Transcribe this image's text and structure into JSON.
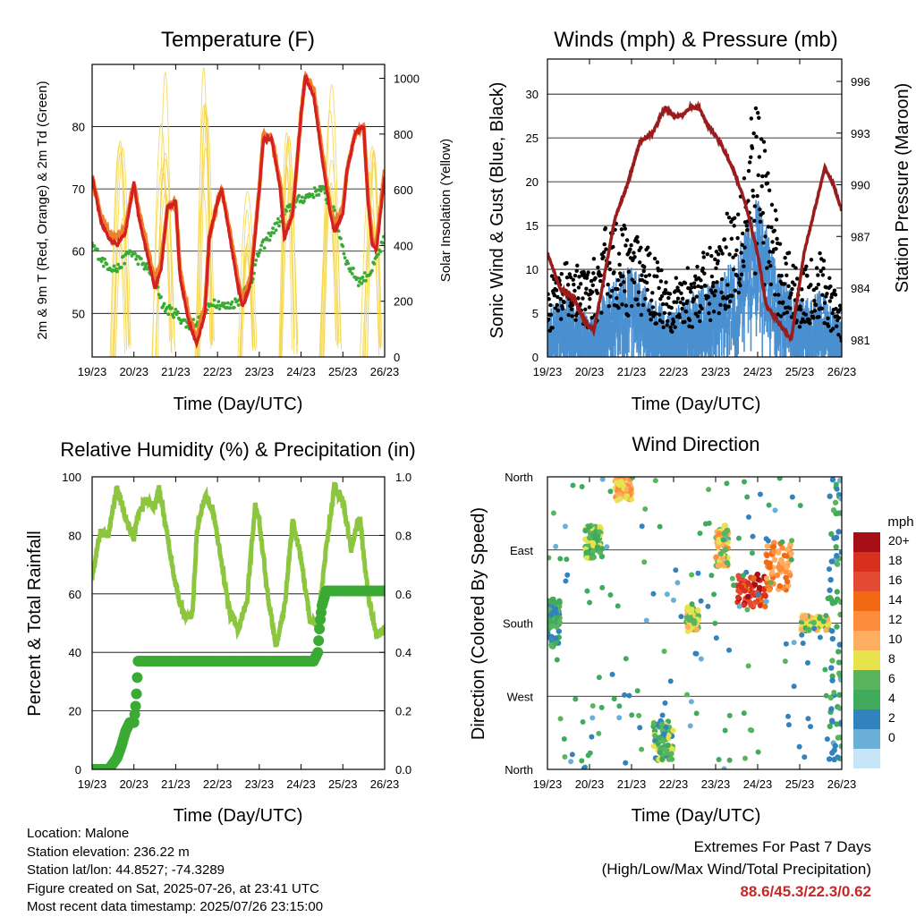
{
  "x_ticks": [
    "19/23",
    "20/23",
    "21/23",
    "22/23",
    "23/23",
    "24/23",
    "25/23",
    "26/23"
  ],
  "info": {
    "location": "Location: Malone",
    "elevation": "Station elevation: 236.22 m",
    "latlon": "Station lat/lon: 44.8527; -74.3289",
    "created": "Figure created on Sat, 2025-07-26, at 23:41 UTC",
    "recent": "Most recent data timestamp: 2025/07/26 23:15:00"
  },
  "extremes": {
    "line1": "Extremes For Past 7 Days",
    "line2": "(High/Low/Max Wind/Total Precipitation)",
    "values": "88.6/45.3/22.3/0.62"
  },
  "colors": {
    "temp2m": "#d42020",
    "temp9m": "#ee7f2d",
    "dewpoint": "#3aaa35",
    "solar": "#f5d547",
    "pressure": "#9b1c1c",
    "wind": "#4a90d0",
    "gust": "#000000",
    "rh": "#8cc63f",
    "precip": "#3aaa35"
  },
  "chart_data": [
    {
      "type": "line",
      "title": "Temperature (F)",
      "xlabel": "Time (Day/UTC)",
      "ylabel": "2m & 9m T (Red, Orange) & 2m Td (Green)",
      "ylabel_right": "Solar Insolation (Yellow)",
      "x_ticks": [
        "19/23",
        "20/23",
        "21/23",
        "22/23",
        "23/23",
        "24/23",
        "25/23",
        "26/23"
      ],
      "ylim": [
        43,
        90
      ],
      "yticks": [
        50,
        60,
        70,
        80
      ],
      "ylim_right": [
        0,
        1050
      ],
      "yticks_right": [
        0,
        200,
        400,
        600,
        800,
        1000
      ],
      "series": [
        {
          "key": "temp2m",
          "x": [
            0,
            0.2,
            0.4,
            0.6,
            0.8,
            1.0,
            1.1,
            1.3,
            1.5,
            1.65,
            1.8,
            2.0,
            2.1,
            2.3,
            2.5,
            2.7,
            2.8,
            3.0,
            3.1,
            3.3,
            3.5,
            3.6,
            3.8,
            4.0,
            4.1,
            4.3,
            4.5,
            4.6,
            4.8,
            5.0,
            5.1,
            5.3,
            5.5,
            5.7,
            5.8,
            6.0,
            6.1,
            6.3,
            6.5,
            6.6,
            6.7,
            6.8,
            7.0
          ],
          "y": [
            72,
            65,
            62,
            61,
            63,
            71,
            66,
            60,
            54,
            57,
            67,
            68,
            56,
            49,
            45,
            50,
            62,
            68,
            70,
            62,
            54,
            51,
            55,
            70,
            78,
            78,
            70,
            62,
            66,
            82,
            88,
            85,
            75,
            66,
            63,
            66,
            73,
            79,
            80,
            68,
            61,
            60,
            72
          ]
        },
        {
          "key": "temp9m",
          "x": [
            0,
            0.2,
            0.4,
            0.6,
            0.8,
            1.0,
            1.1,
            1.3,
            1.5,
            1.65,
            1.8,
            2.0,
            2.1,
            2.3,
            2.5,
            2.7,
            2.8,
            3.0,
            3.1,
            3.3,
            3.5,
            3.6,
            3.8,
            4.0,
            4.1,
            4.3,
            4.5,
            4.6,
            4.8,
            5.0,
            5.1,
            5.3,
            5.5,
            5.7,
            5.8,
            6.0,
            6.1,
            6.3,
            6.5,
            6.6,
            6.7,
            6.8,
            7.0
          ],
          "y": [
            72,
            66,
            63,
            62,
            64,
            71,
            67,
            61,
            55,
            58,
            67,
            68,
            57,
            50,
            46,
            51,
            62,
            68,
            70,
            63,
            55,
            52,
            56,
            70,
            79,
            78,
            71,
            63,
            66,
            82,
            88,
            86,
            76,
            67,
            64,
            67,
            73,
            79,
            80,
            69,
            62,
            61,
            73
          ]
        },
        {
          "key": "dewpoint",
          "x": [
            0,
            0.3,
            0.6,
            0.9,
            1.2,
            1.5,
            1.7,
            2.0,
            2.3,
            2.6,
            2.9,
            3.2,
            3.5,
            3.8,
            4.0,
            4.3,
            4.6,
            4.9,
            5.2,
            5.5,
            5.8,
            6.1,
            6.4,
            6.7,
            7.0
          ],
          "y": [
            61,
            58,
            57,
            60,
            58,
            56,
            51,
            50,
            48,
            49,
            52,
            51,
            52,
            55,
            60,
            63,
            66,
            68,
            69,
            70,
            66,
            58,
            55,
            57,
            62
          ]
        }
      ],
      "solar": {
        "peaks_at": [
          0.7,
          1.7,
          2.7,
          3.7,
          4.7,
          5.7,
          6.7
        ],
        "peak_values": [
          780,
          1030,
          1040,
          600,
          920,
          1010,
          780
        ]
      }
    },
    {
      "type": "scatter",
      "title": "Winds (mph) & Pressure (mb)",
      "xlabel": "Time (Day/UTC)",
      "ylabel": "Sonic Wind & Gust (Blue, Black)",
      "ylabel_right": "Station Pressure (Maroon)",
      "x_ticks": [
        "19/23",
        "20/23",
        "21/23",
        "22/23",
        "23/23",
        "24/23",
        "25/23",
        "26/23"
      ],
      "ylim": [
        0,
        34
      ],
      "yticks": [
        0,
        5,
        10,
        15,
        20,
        25,
        30
      ],
      "ylim_right": [
        980,
        997.3
      ],
      "yticks_right": [
        981,
        984,
        987,
        990,
        993,
        996
      ],
      "wind_envelope": {
        "x": [
          0,
          0.5,
          1.0,
          1.5,
          2.0,
          2.5,
          3.0,
          3.5,
          4.0,
          4.5,
          5.0,
          5.5,
          6.0,
          6.5,
          7.0
        ],
        "y": [
          5,
          7,
          4,
          8,
          10,
          6,
          5,
          7,
          8,
          11,
          17,
          9,
          6,
          7,
          4
        ]
      },
      "gust_envelope": {
        "x": [
          0,
          0.5,
          1.0,
          1.5,
          2.0,
          2.5,
          3.0,
          3.5,
          4.0,
          4.5,
          5.0,
          5.5,
          6.0,
          6.5,
          7.0
        ],
        "y": [
          8,
          10,
          9,
          15,
          13,
          11,
          8,
          10,
          12,
          18,
          28,
          13,
          9,
          11,
          5
        ]
      },
      "pressure": {
        "x": [
          0,
          0.3,
          0.6,
          0.9,
          1.1,
          1.3,
          1.6,
          1.9,
          2.2,
          2.5,
          2.8,
          3.0,
          3.2,
          3.4,
          3.6,
          3.8,
          4.1,
          4.4,
          4.7,
          5.0,
          5.2,
          5.5,
          5.8,
          6.1,
          6.4,
          6.6,
          6.8,
          7.0
        ],
        "y": [
          986,
          984,
          983.5,
          982,
          981.5,
          984,
          988,
          990,
          992.5,
          993,
          994.5,
          994,
          994,
          994.5,
          994.5,
          993.5,
          992.5,
          991,
          989,
          986,
          983,
          982,
          981,
          986,
          989,
          991,
          990,
          988.5
        ]
      }
    },
    {
      "type": "line",
      "title": "Relative Humidity (%) & Precipitation (in)",
      "xlabel": "Time (Day/UTC)",
      "ylabel": "Percent & Total Rainfall",
      "x_ticks": [
        "19/23",
        "20/23",
        "21/23",
        "22/23",
        "23/23",
        "24/23",
        "25/23",
        "26/23"
      ],
      "ylim": [
        0,
        100
      ],
      "yticks": [
        0,
        20,
        40,
        60,
        80,
        100
      ],
      "ylim_right": [
        0,
        1.0
      ],
      "yticks_right": [
        "0.0",
        "0.2",
        "0.4",
        "0.6",
        "0.8",
        "1.0"
      ],
      "rh": {
        "x": [
          0,
          0.2,
          0.4,
          0.5,
          0.6,
          0.8,
          1.0,
          1.1,
          1.3,
          1.5,
          1.6,
          1.8,
          2.0,
          2.2,
          2.4,
          2.5,
          2.7,
          2.9,
          3.1,
          3.3,
          3.5,
          3.7,
          3.9,
          4.0,
          4.2,
          4.4,
          4.6,
          4.8,
          5.0,
          5.2,
          5.4,
          5.6,
          5.8,
          6.0,
          6.2,
          6.4,
          6.6,
          6.8,
          7.0
        ],
        "y": [
          66,
          81,
          80,
          90,
          96,
          86,
          79,
          88,
          92,
          90,
          96,
          80,
          63,
          52,
          53,
          80,
          94,
          88,
          70,
          53,
          48,
          57,
          90,
          85,
          60,
          42,
          55,
          85,
          72,
          52,
          49,
          75,
          97,
          92,
          75,
          87,
          60,
          46,
          48
        ]
      },
      "precip": {
        "x": [
          0,
          0.4,
          0.5,
          0.6,
          0.7,
          0.8,
          0.9,
          1.0,
          1.05,
          1.1,
          1.5,
          2.0,
          3.0,
          4.0,
          4.5,
          5.0,
          5.3,
          5.4,
          5.45,
          5.5,
          5.6,
          6.0,
          6.5,
          7.0
        ],
        "y": [
          0,
          0,
          0.02,
          0.04,
          0.08,
          0.13,
          0.16,
          0.16,
          0.23,
          0.37,
          0.37,
          0.37,
          0.37,
          0.37,
          0.37,
          0.37,
          0.37,
          0.4,
          0.5,
          0.56,
          0.61,
          0.61,
          0.61,
          0.61
        ]
      }
    },
    {
      "type": "scatter",
      "title": "Wind Direction",
      "xlabel": "Time (Day/UTC)",
      "ylabel": "Direction (Colored By Speed)",
      "x_ticks": [
        "19/23",
        "20/23",
        "21/23",
        "22/23",
        "23/23",
        "24/23",
        "25/23",
        "26/23"
      ],
      "yticks": [
        "North",
        "West",
        "South",
        "East",
        "North"
      ],
      "ylim": [
        0,
        360
      ],
      "colorbar": {
        "title": "mph",
        "labels": [
          "20+",
          "18",
          "16",
          "14",
          "12",
          "10",
          "8",
          "6",
          "4",
          "2",
          "0"
        ],
        "colors": [
          "#a50f15",
          "#d7301f",
          "#e34a33",
          "#f16913",
          "#fd8d3c",
          "#fdae61",
          "#e6e34d",
          "#59b55d",
          "#41ab5d",
          "#3182bd",
          "#6baed6",
          "#c6e6f7"
        ]
      },
      "clusters": [
        {
          "x": [
            0,
            0.3
          ],
          "dir": [
            150,
            210
          ],
          "speed": 4
        },
        {
          "x": [
            0.9,
            1.3
          ],
          "dir": [
            260,
            300
          ],
          "speed": 6
        },
        {
          "x": [
            1.6,
            2.0
          ],
          "dir": [
            330,
            360
          ],
          "speed": 10
        },
        {
          "x": [
            2.5,
            3.0
          ],
          "dir": [
            10,
            60
          ],
          "speed": 5
        },
        {
          "x": [
            3.3,
            3.6
          ],
          "dir": [
            170,
            200
          ],
          "speed": 8
        },
        {
          "x": [
            4.0,
            4.3
          ],
          "dir": [
            250,
            300
          ],
          "speed": 9
        },
        {
          "x": [
            4.5,
            5.2
          ],
          "dir": [
            200,
            240
          ],
          "speed": 17
        },
        {
          "x": [
            5.2,
            5.8
          ],
          "dir": [
            220,
            280
          ],
          "speed": 12
        },
        {
          "x": [
            6.0,
            6.7
          ],
          "dir": [
            170,
            190
          ],
          "speed": 7
        },
        {
          "x": [
            6.7,
            7.0
          ],
          "dir": [
            10,
            360
          ],
          "speed": 3
        }
      ]
    }
  ]
}
